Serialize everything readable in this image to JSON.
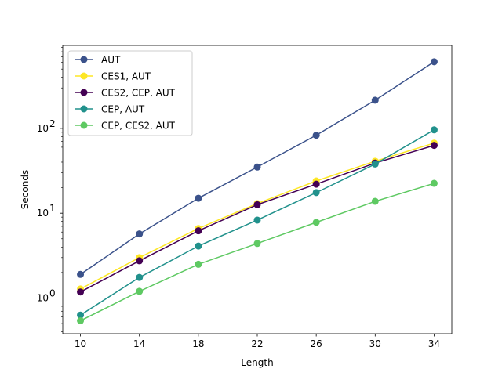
{
  "chart_data": {
    "type": "line",
    "x": [
      10,
      14,
      18,
      22,
      26,
      30,
      34
    ],
    "xticks": [
      "10",
      "14",
      "18",
      "22",
      "26",
      "30",
      "34"
    ],
    "xlabel": "Length",
    "ylabel": "Seconds",
    "yscale": "log",
    "ylim": [
      0.38,
      950
    ],
    "yticks": [
      {
        "base": "10",
        "exp": "0",
        "value": 1
      },
      {
        "base": "10",
        "exp": "1",
        "value": 10
      },
      {
        "base": "10",
        "exp": "2",
        "value": 100
      }
    ],
    "grid": false,
    "legend_position": "top-left",
    "series": [
      {
        "name": "AUT",
        "color": "#3b528b",
        "values": [
          1.9,
          5.7,
          15,
          35,
          83,
          215,
          610
        ]
      },
      {
        "name": "CES1, AUT",
        "color": "#fde725",
        "values": [
          1.28,
          3.0,
          6.6,
          13,
          24,
          41,
          67
        ]
      },
      {
        "name": "CES2, CEP, AUT",
        "color": "#440154",
        "values": [
          1.18,
          2.75,
          6.2,
          12.6,
          22,
          39,
          63
        ]
      },
      {
        "name": "CEP, AUT",
        "color": "#21918c",
        "values": [
          0.63,
          1.75,
          4.1,
          8.3,
          17.5,
          38,
          96
        ]
      },
      {
        "name": "CEP, CES2, AUT",
        "color": "#5ec962",
        "values": [
          0.54,
          1.2,
          2.5,
          4.4,
          7.8,
          13.8,
          22.5
        ]
      }
    ]
  }
}
